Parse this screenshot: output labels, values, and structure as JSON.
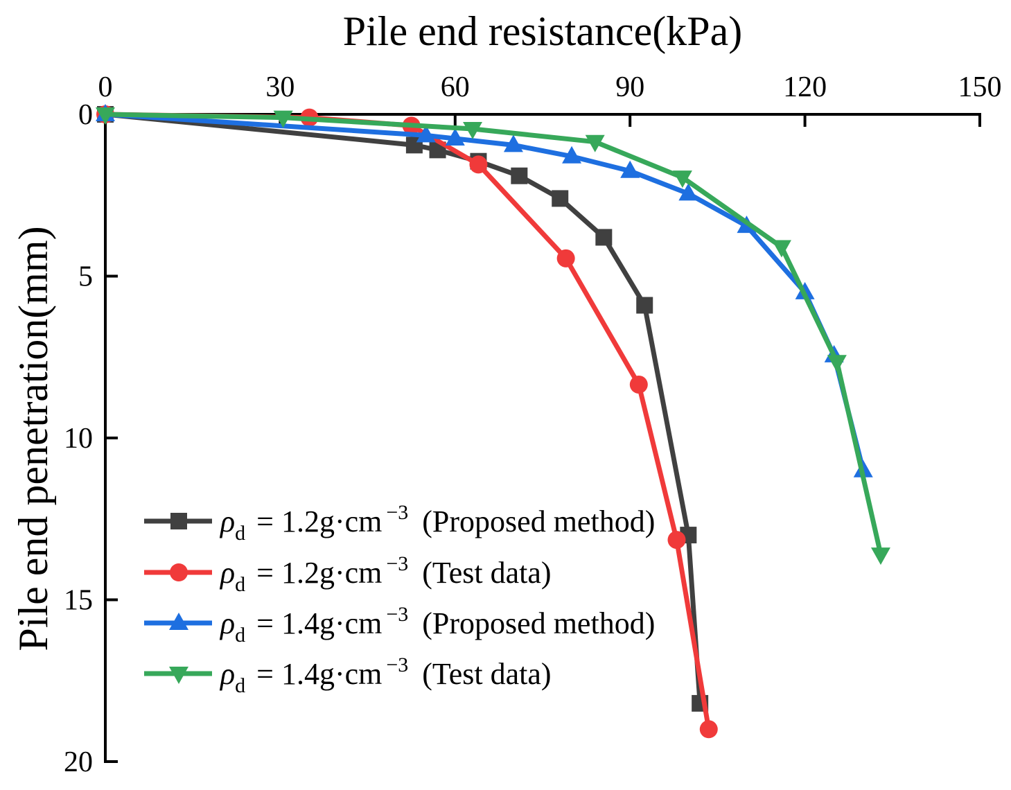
{
  "chart_data": {
    "type": "line",
    "xlabel": "Pile end resistance(kPa)",
    "ylabel": "Pile end penetration(mm)",
    "x_axis_on_top": true,
    "y_axis_inverted": true,
    "xlim": [
      0,
      150
    ],
    "ylim": [
      0,
      20
    ],
    "xticks": [
      0,
      30,
      60,
      90,
      120,
      150
    ],
    "yticks": [
      0,
      5,
      10,
      15,
      20
    ],
    "grid": false,
    "legend_position": "bottom-left",
    "series": [
      {
        "label": {
          "symbol": "ρ",
          "subscript": "d",
          "equation": "= 1.2g·cm",
          "exponent": "−3",
          "note": "(Proposed method)"
        },
        "color": "#404040",
        "marker": "square",
        "x": [
          0,
          53,
          57,
          64,
          71,
          78,
          85.5,
          92.5,
          100,
          102
        ],
        "y": [
          0,
          0.95,
          1.1,
          1.45,
          1.9,
          2.6,
          3.8,
          5.9,
          13.0,
          18.2
        ]
      },
      {
        "label": {
          "symbol": "ρ",
          "subscript": "d",
          "equation": "= 1.2g·cm",
          "exponent": "−3",
          "note": "(Test data)"
        },
        "color": "#f03a3a",
        "marker": "circle",
        "x": [
          0,
          35,
          52.5,
          64,
          79,
          91.5,
          98,
          103.5
        ],
        "y": [
          0,
          0.1,
          0.35,
          1.55,
          4.45,
          8.35,
          13.15,
          19.0
        ]
      },
      {
        "label": {
          "symbol": "ρ",
          "subscript": "d",
          "equation": "= 1.4g·cm",
          "exponent": "−3",
          "note": "(Proposed method)"
        },
        "color": "#1e6fe0",
        "marker": "triangle-up",
        "x": [
          0,
          55,
          60,
          70,
          80,
          90,
          100,
          110,
          120,
          125,
          130
        ],
        "y": [
          0,
          0.65,
          0.75,
          0.95,
          1.3,
          1.75,
          2.45,
          3.45,
          5.5,
          7.45,
          11.0
        ]
      },
      {
        "label": {
          "symbol": "ρ",
          "subscript": "d",
          "equation": "= 1.4g·cm",
          "exponent": "−3",
          "note": "(Test data)"
        },
        "color": "#37a85a",
        "marker": "triangle-down",
        "x": [
          0,
          30.5,
          63,
          84,
          99,
          116,
          125.5,
          133
        ],
        "y": [
          0,
          0.1,
          0.45,
          0.85,
          1.95,
          4.1,
          7.65,
          13.6
        ]
      }
    ]
  }
}
